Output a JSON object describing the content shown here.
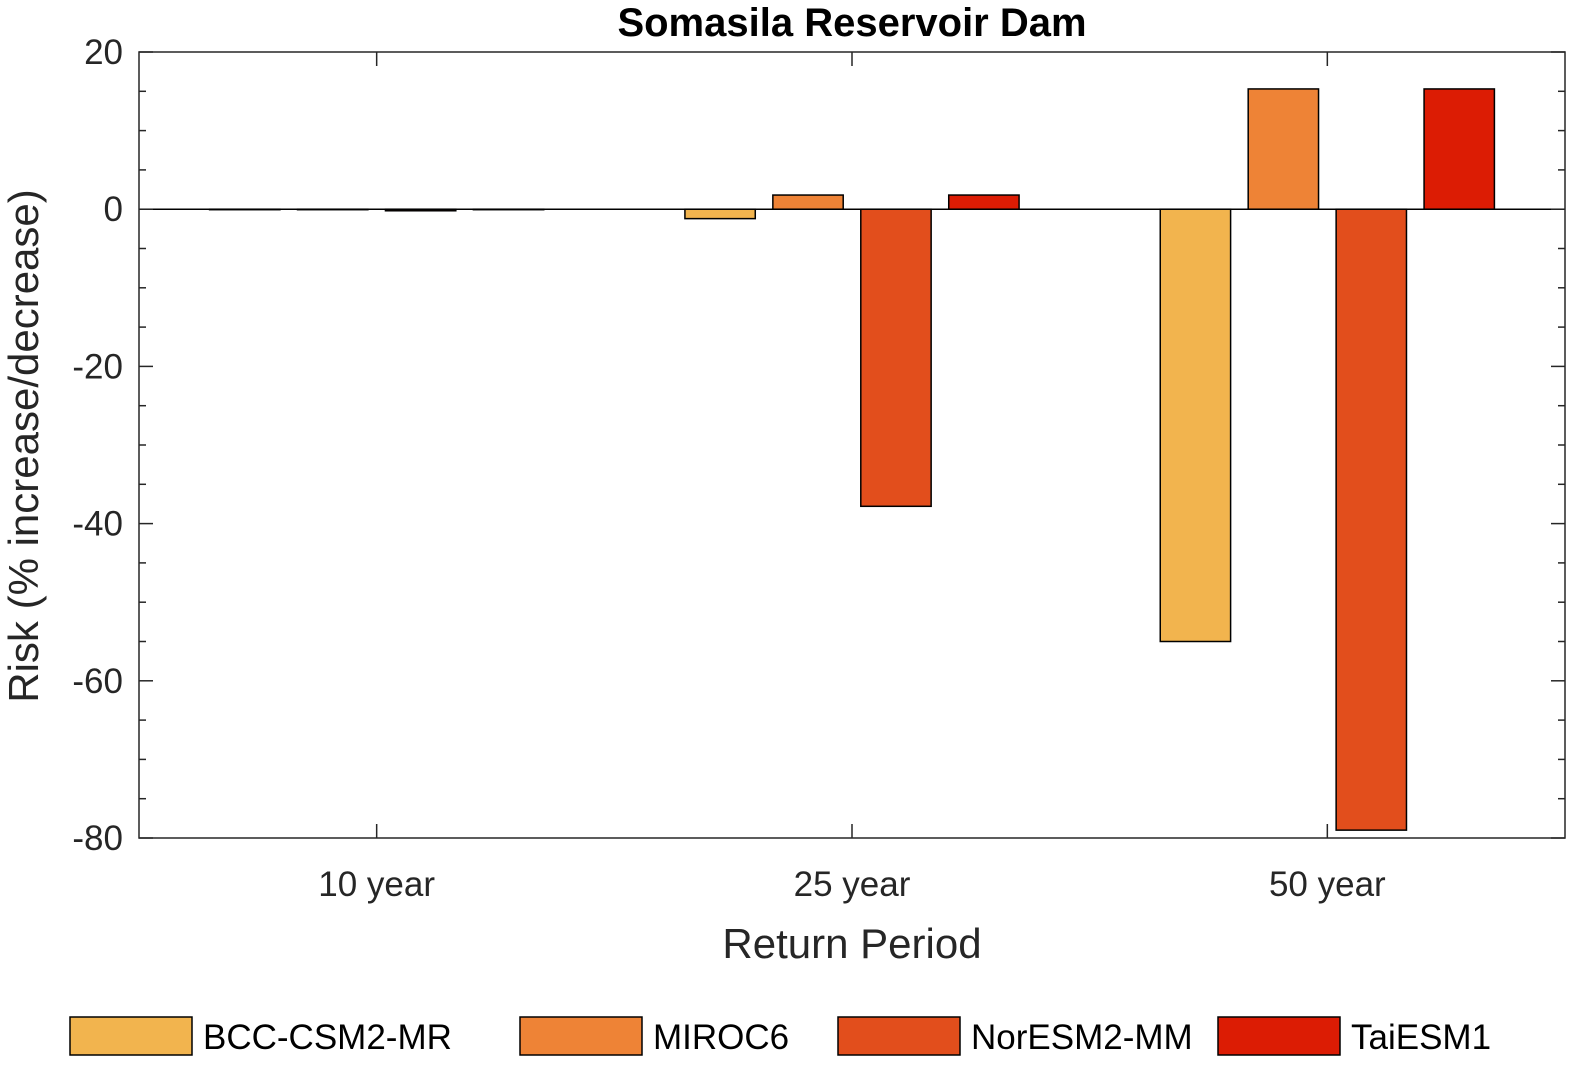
{
  "chart_data": {
    "type": "bar",
    "title": "Somasila Reservoir Dam",
    "xlabel": "Return Period",
    "ylabel": "Risk (% increase/decrease)",
    "categories": [
      "10 year",
      "25 year",
      "50 year"
    ],
    "ylim": [
      -80,
      20
    ],
    "yticks": [
      20,
      0,
      -20,
      -40,
      -60,
      -80
    ],
    "yticks_labels": [
      "20",
      "0",
      "-20",
      "-40",
      "-60",
      "-80"
    ],
    "grid": false,
    "legend_position": "bottom",
    "series": [
      {
        "name": "BCC-CSM2-MR",
        "color": "#F2B44E",
        "values": [
          0,
          -1.2,
          -55
        ]
      },
      {
        "name": "MIROC6",
        "color": "#EE8336",
        "values": [
          0,
          1.8,
          15.3
        ]
      },
      {
        "name": "NorESM2-MM",
        "color": "#E24E1C",
        "values": [
          -0.2,
          -37.8,
          -79
        ]
      },
      {
        "name": "TaiESM1",
        "color": "#DC1C04",
        "values": [
          0,
          1.8,
          15.3
        ]
      }
    ]
  }
}
